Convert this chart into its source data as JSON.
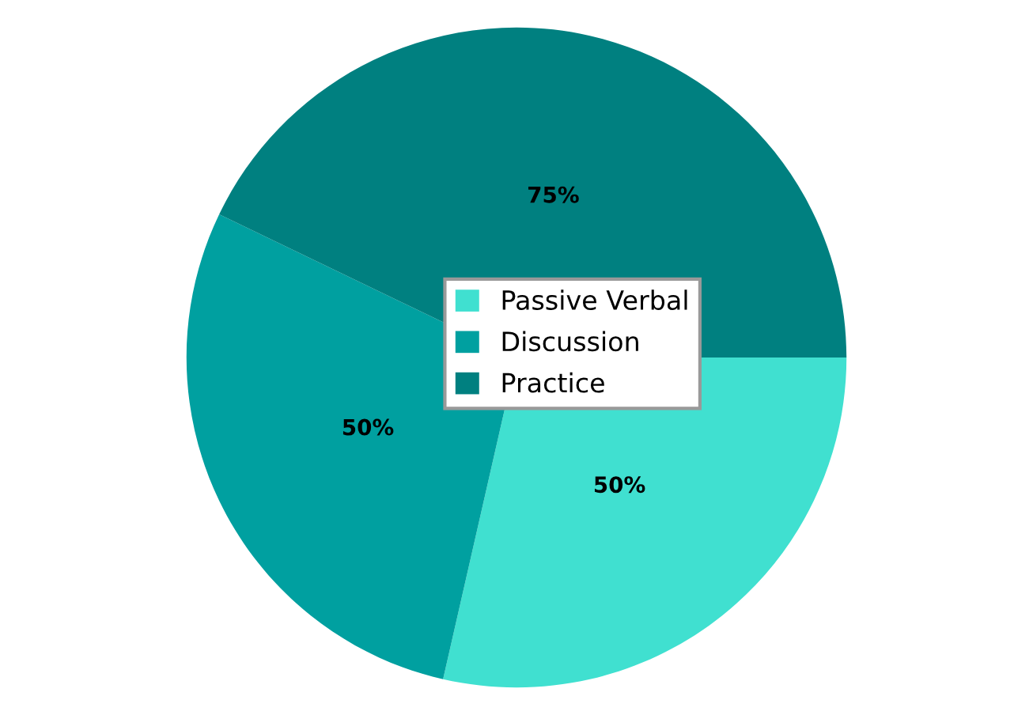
{
  "chart_data": {
    "type": "pie",
    "categories": [
      "Passive Verbal",
      "Discussion",
      "Practice"
    ],
    "values": [
      50,
      50,
      75
    ],
    "colors": [
      "#40e0d0",
      "#00a0a0",
      "#008080"
    ],
    "value_labels": [
      "50%",
      "50%",
      "75%"
    ],
    "legend": "center"
  }
}
